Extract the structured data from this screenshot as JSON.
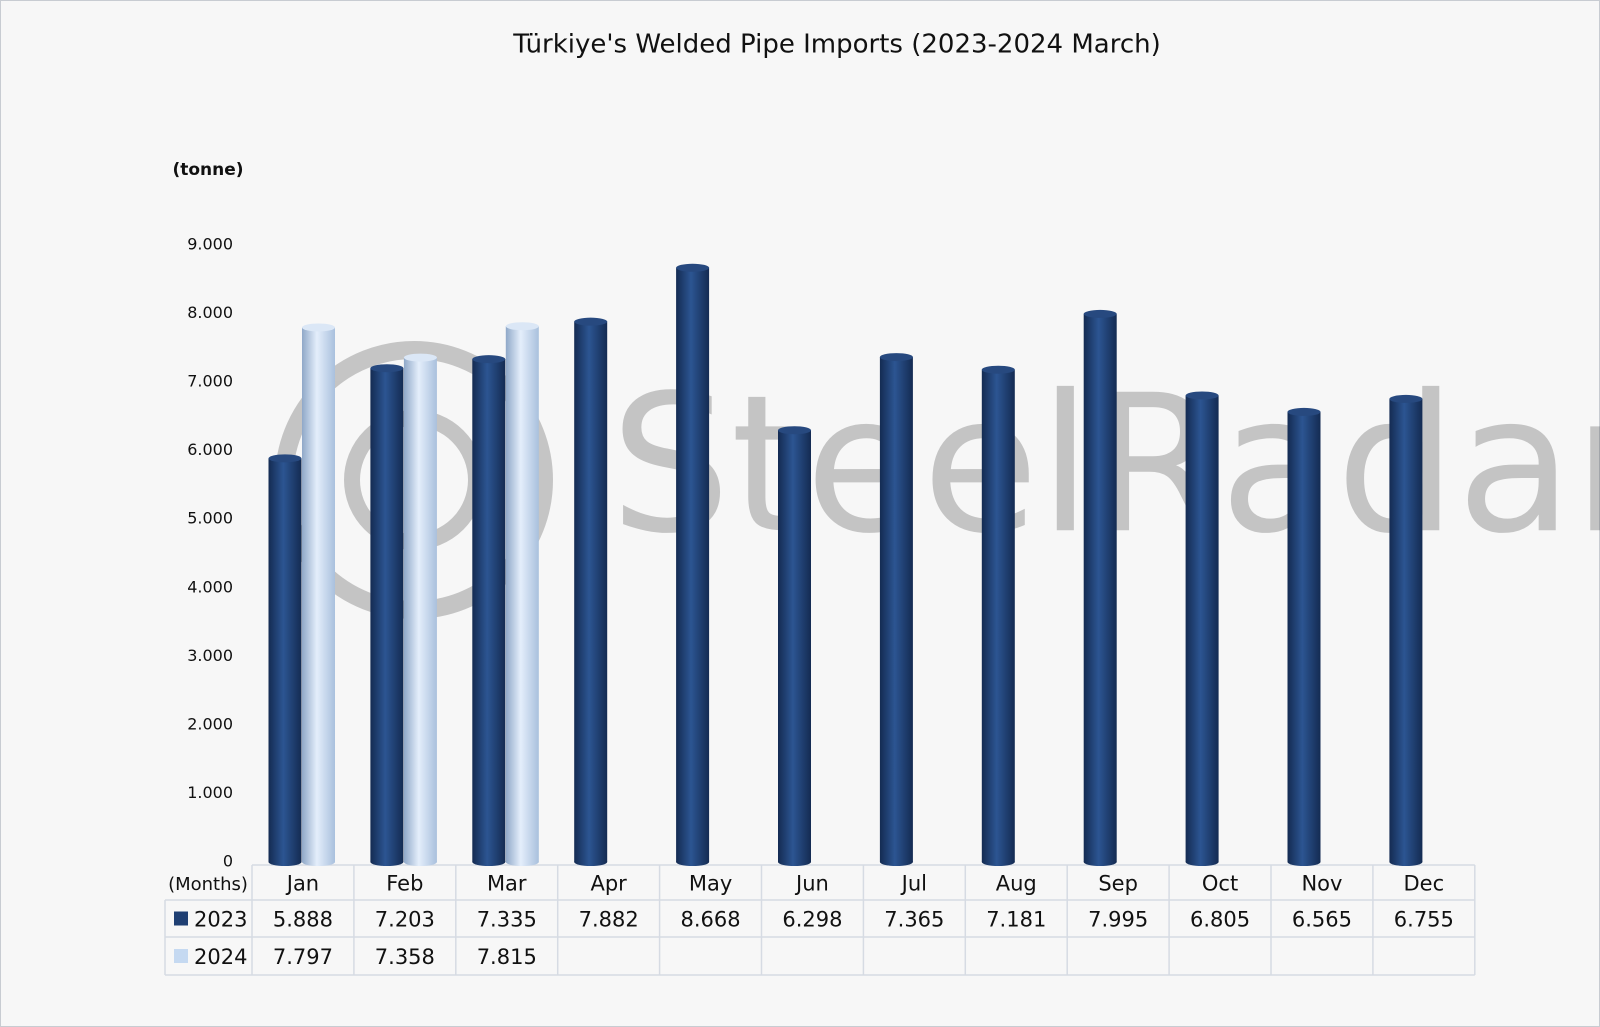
{
  "chart_data": {
    "type": "bar",
    "title": "Türkiye's Welded Pipe Imports (2023-2024 March)",
    "y_label": "(tonne)",
    "x_label": "(Months)",
    "watermark": "SteelRadar",
    "categories": [
      "Jan",
      "Feb",
      "Mar",
      "Apr",
      "May",
      "Jun",
      "Jul",
      "Aug",
      "Sep",
      "Oct",
      "Nov",
      "Dec"
    ],
    "series": [
      {
        "name": "2023",
        "color": "#1f3f73",
        "values": [
          5888,
          7203,
          7335,
          7882,
          8668,
          6298,
          7365,
          7181,
          7995,
          6805,
          6565,
          6755
        ],
        "value_labels": [
          "5.888",
          "7.203",
          "7.335",
          "7.882",
          "8.668",
          "6.298",
          "7.365",
          "7.181",
          "7.995",
          "6.805",
          "6.565",
          "6.755"
        ]
      },
      {
        "name": "2024",
        "color": "#c5d9f1",
        "values": [
          7797,
          7358,
          7815,
          null,
          null,
          null,
          null,
          null,
          null,
          null,
          null,
          null
        ],
        "value_labels": [
          "7.797",
          "7.358",
          "7.815",
          null,
          null,
          null,
          null,
          null,
          null,
          null,
          null,
          null
        ]
      }
    ],
    "ylim": [
      0,
      9000
    ],
    "yticks": [
      0,
      {
        "value": 1000,
        "label": "1.000"
      },
      {
        "value": 2000,
        "label": "2.000"
      },
      {
        "value": 3000,
        "label": "3.000"
      },
      {
        "value": 4000,
        "label": "4.000"
      },
      {
        "value": 5000,
        "label": "5.000"
      },
      {
        "value": 6000,
        "label": "6.000"
      },
      {
        "value": 7000,
        "label": "7.000"
      },
      {
        "value": 8000,
        "label": "8.000"
      },
      {
        "value": 9000,
        "label": "9.000"
      }
    ],
    "grid": false
  }
}
